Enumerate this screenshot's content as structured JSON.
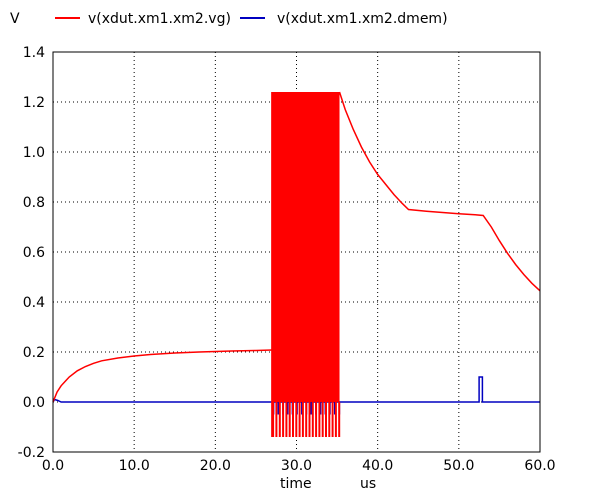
{
  "chart_data": {
    "type": "line",
    "ylabel_corner": "V",
    "xlabel": "time",
    "xunit": "us",
    "xlim": [
      0,
      60
    ],
    "ylim": [
      -0.2,
      1.4
    ],
    "x_ticks": [
      "0.0",
      "10.0",
      "20.0",
      "30.0",
      "40.0",
      "50.0",
      "60.0"
    ],
    "y_ticks": [
      "-0.2",
      "0.0",
      "0.2",
      "0.4",
      "0.6",
      "0.8",
      "1.0",
      "1.2",
      "1.4"
    ],
    "grid": true,
    "legend_position": "top",
    "series": [
      {
        "name": "v(xdut.xm1.xm2.vg)",
        "color": "#ff0000",
        "segments": [
          {
            "kind": "line",
            "x": [
              0,
              0.5,
              1,
              2,
              3,
              4,
              5,
              6,
              8,
              10,
              12,
              15,
              18,
              20,
              22,
              25,
              27.0
            ],
            "y": [
              0.0,
              0.04,
              0.065,
              0.1,
              0.125,
              0.142,
              0.155,
              0.165,
              0.176,
              0.184,
              0.19,
              0.196,
              0.2,
              0.202,
              0.204,
              0.206,
              0.208
            ]
          },
          {
            "kind": "oscillation",
            "x_start": 27.0,
            "x_end": 35.3,
            "y_min": -0.14,
            "y_max": 1.24
          },
          {
            "kind": "line",
            "x": [
              35.3,
              36,
              37,
              38,
              39,
              40,
              41,
              42,
              43,
              43.8,
              46,
              48,
              50,
              52,
              53.0,
              54,
              55,
              56,
              57,
              58,
              59,
              60
            ],
            "y": [
              1.24,
              1.17,
              1.09,
              1.02,
              0.96,
              0.91,
              0.87,
              0.83,
              0.795,
              0.77,
              0.763,
              0.758,
              0.753,
              0.749,
              0.746,
              0.7,
              0.645,
              0.595,
              0.55,
              0.51,
              0.475,
              0.445
            ]
          }
        ]
      },
      {
        "name": "v(xdut.xm1.xm2.dmem)",
        "color": "#0000c0",
        "segments": [
          {
            "kind": "line",
            "x": [
              0,
              0.2,
              0.6,
              1.0,
              27.0
            ],
            "y": [
              0.0,
              0.01,
              0.006,
              0.0,
              0.0
            ]
          },
          {
            "kind": "pulses",
            "x_start": 27.0,
            "x_end": 35.3,
            "y_min": -0.05,
            "y_max": 0.0
          },
          {
            "kind": "line",
            "x": [
              35.3,
              52.5,
              52.5,
              52.9,
              52.9,
              60
            ],
            "y": [
              0.0,
              0.0,
              0.1,
              0.1,
              0.0,
              0.0
            ]
          }
        ]
      }
    ]
  }
}
